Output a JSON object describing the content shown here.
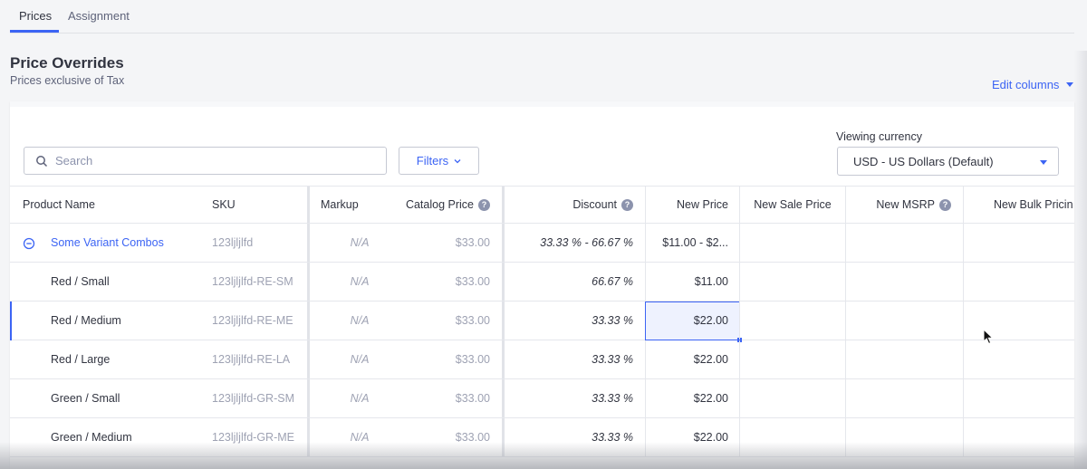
{
  "tabs": [
    {
      "label": "Prices",
      "active": true
    },
    {
      "label": "Assignment",
      "active": false
    }
  ],
  "page": {
    "title": "Price Overrides",
    "subtitle": "Prices exclusive of Tax",
    "edit_columns": "Edit columns"
  },
  "toolbar": {
    "search_placeholder": "Search",
    "filters_label": "Filters",
    "currency_label": "Viewing currency",
    "currency_value": "USD - US Dollars (Default)"
  },
  "table": {
    "columns": {
      "product_name": "Product Name",
      "sku": "SKU",
      "markup": "Markup",
      "catalog_price": "Catalog Price",
      "discount": "Discount",
      "new_price": "New Price",
      "new_sale_price": "New Sale Price",
      "new_msrp": "New MSRP",
      "new_bulk_pricing": "New Bulk Pricin"
    },
    "rows": [
      {
        "name": "Some Variant Combos",
        "sku": "123ljljlfd",
        "markup": "N/A",
        "catalog": "$33.00",
        "discount": "33.33 % - 66.67 %",
        "new_price": "$11.00 - $2..."
      },
      {
        "name": "Red / Small",
        "sku": "123ljljlfd-RE-SM",
        "markup": "N/A",
        "catalog": "$33.00",
        "discount": "66.67 %",
        "new_price": "$11.00"
      },
      {
        "name": "Red / Medium",
        "sku": "123ljljlfd-RE-ME",
        "markup": "N/A",
        "catalog": "$33.00",
        "discount": "33.33 %",
        "new_price": "$22.00"
      },
      {
        "name": "Red / Large",
        "sku": "123ljljlfd-RE-LA",
        "markup": "N/A",
        "catalog": "$33.00",
        "discount": "33.33 %",
        "new_price": "$22.00"
      },
      {
        "name": "Green / Small",
        "sku": "123ljljlfd-GR-SM",
        "markup": "N/A",
        "catalog": "$33.00",
        "discount": "33.33 %",
        "new_price": "$22.00"
      },
      {
        "name": "Green / Medium",
        "sku": "123ljljlfd-GR-ME",
        "markup": "N/A",
        "catalog": "$33.00",
        "discount": "33.33 %",
        "new_price": "$22.00"
      }
    ]
  },
  "colors": {
    "accent": "#3c64f4",
    "text": "#313440",
    "muted": "#9ea2b3",
    "background": "#f4f5f7"
  },
  "icons": {
    "search": "search-icon",
    "filters_chevron": "chevron-down-icon",
    "collapse": "minus-circle-icon",
    "help": "question-circle-icon",
    "cursor": "mouse-pointer-icon"
  }
}
